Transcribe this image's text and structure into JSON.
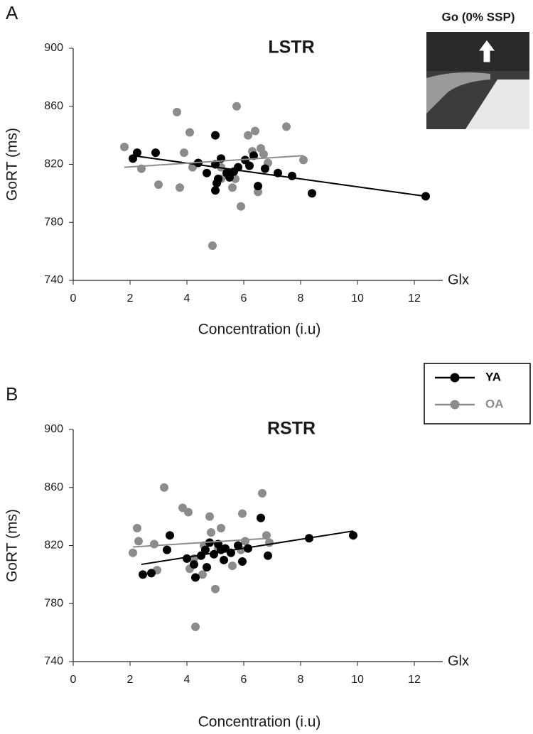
{
  "inset": {
    "title": "Go (0%  SSP)"
  },
  "chart_data": [
    {
      "panel": "A",
      "type": "scatter",
      "title": "LSTR",
      "xlabel": "Concentration (i.u)",
      "ylabel": "GoRT (ms)",
      "axis_end_label": "Glx",
      "xlim": [
        0,
        13
      ],
      "ylim": [
        740,
        900
      ],
      "xticks": [
        0,
        2,
        4,
        6,
        8,
        10,
        12
      ],
      "yticks": [
        740,
        780,
        820,
        860,
        900
      ],
      "series": [
        {
          "color": "#000000",
          "x": [
            2.1,
            2.25,
            2.9,
            4.4,
            4.7,
            5.0,
            5.0,
            5.0,
            5.05,
            5.1,
            5.2,
            5.4,
            5.5,
            5.65,
            5.8,
            6.05,
            6.2,
            6.35,
            6.5,
            6.75,
            7.2,
            7.7,
            8.4,
            12.4
          ],
          "values": [
            824,
            828,
            828,
            821,
            814,
            820,
            840,
            802,
            807,
            810,
            824,
            814,
            811,
            815,
            818,
            823,
            819,
            826,
            805,
            817,
            814,
            812,
            800,
            798
          ],
          "trend": {
            "x": [
              2.1,
              12.4
            ],
            "values": [
              826,
              798
            ]
          }
        },
        {
          "color": "#8c8c8c",
          "x": [
            1.8,
            2.4,
            3.0,
            3.65,
            3.75,
            3.9,
            4.1,
            4.2,
            4.9,
            5.2,
            5.2,
            5.6,
            5.75,
            5.7,
            5.9,
            6.15,
            6.3,
            6.4,
            6.5,
            6.6,
            6.7,
            6.85,
            7.5,
            8.1
          ],
          "values": [
            832,
            817,
            806,
            856,
            804,
            828,
            842,
            818,
            764,
            810,
            818,
            804,
            860,
            810,
            791,
            840,
            829,
            843,
            801,
            831,
            827,
            821,
            846,
            823
          ],
          "trend": {
            "x": [
              1.8,
              8.1
            ],
            "values": [
              818,
              826
            ]
          }
        }
      ]
    },
    {
      "panel": "B",
      "type": "scatter",
      "title": "RSTR",
      "xlabel": "Concentration (i.u)",
      "ylabel": "GoRT (ms)",
      "axis_end_label": "Glx",
      "xlim": [
        0,
        13
      ],
      "ylim": [
        740,
        900
      ],
      "xticks": [
        0,
        2,
        4,
        6,
        8,
        10,
        12
      ],
      "yticks": [
        740,
        780,
        820,
        860,
        900
      ],
      "legend": true,
      "series": [
        {
          "name": "YA",
          "color": "#000000",
          "x": [
            2.45,
            2.75,
            3.3,
            3.4,
            4.0,
            4.25,
            4.3,
            4.5,
            4.65,
            4.7,
            4.8,
            4.95,
            5.1,
            5.2,
            5.3,
            5.35,
            5.55,
            5.8,
            5.95,
            6.15,
            6.6,
            6.85,
            8.3,
            9.85
          ],
          "values": [
            800,
            801,
            817,
            827,
            811,
            807,
            798,
            813,
            817,
            805,
            822,
            814,
            821,
            817,
            810,
            818,
            815,
            820,
            809,
            818,
            839,
            813,
            825,
            827
          ],
          "trend": {
            "x": [
              2.4,
              9.85
            ],
            "values": [
              807,
              830
            ]
          }
        },
        {
          "name": "OA",
          "color": "#8c8c8c",
          "x": [
            2.1,
            2.25,
            2.3,
            2.85,
            2.95,
            3.2,
            3.85,
            4.05,
            4.1,
            4.25,
            4.55,
            4.6,
            4.8,
            4.85,
            5.0,
            4.3,
            5.2,
            5.1,
            5.6,
            5.9,
            5.95,
            6.05,
            6.65,
            6.8,
            6.9
          ],
          "values": [
            815,
            832,
            823,
            821,
            803,
            860,
            846,
            843,
            804,
            811,
            800,
            820,
            840,
            829,
            790,
            764,
            832,
            818,
            806,
            817,
            842,
            823,
            856,
            827,
            822
          ],
          "trend": {
            "x": [
              2.1,
              6.9
            ],
            "values": [
              819,
              825
            ]
          }
        }
      ]
    }
  ]
}
